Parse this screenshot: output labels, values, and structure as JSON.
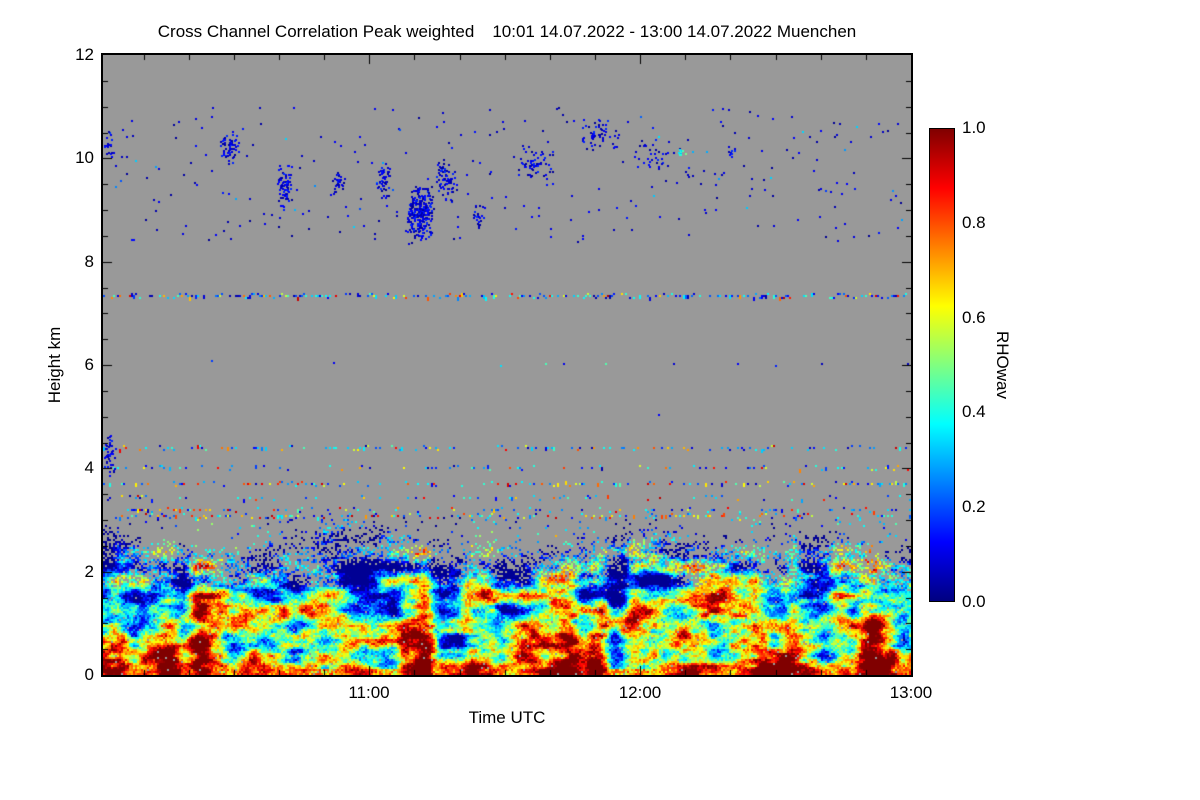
{
  "chart_data": {
    "type": "heatmap",
    "title": "Cross Channel Correlation Peak weighted",
    "date_range": "10:01 14.07.2022 - 13:00 14.07.2022 Muenchen",
    "xlabel": "Time UTC",
    "ylabel": "Height km",
    "x_start": "10:01",
    "x_end": "13:00",
    "x_ticks": [
      "11:00",
      "12:00",
      "13:00"
    ],
    "x_tick_minutes": [
      59,
      119,
      179
    ],
    "x_total_minutes": 179,
    "x_minor_step_minutes": 10,
    "y_min": 0,
    "y_max": 12,
    "y_ticks": [
      "0",
      "2",
      "4",
      "6",
      "8",
      "10",
      "12"
    ],
    "y_major_step": 2,
    "y_minor_step": 0.5,
    "colorbar": {
      "label": "RHOwav",
      "min": 0.0,
      "max": 1.0,
      "ticks": [
        "0.0",
        "0.2",
        "0.4",
        "0.6",
        "0.8",
        "1.0"
      ],
      "colormap": "jet"
    },
    "no_data_color": "#999999",
    "description": "Time-height cross-channel correlation (RHOwav). Dense jet-colored boundary-layer signal below ~2.8 km (red/orange near ground, cyan/green/blue plumes above), intermittent thin speckle layers near 3.0-4.5 km, a thin layer at ~7.35 km, and scattered dark-blue low-correlation cloud echoes between ~8.4 and 11 km. Background gray = no data.",
    "render": {
      "seed": 42,
      "boundary_layer": {
        "top_mean_km": 2.45,
        "top_amp_km": 0.5,
        "surface_value": 0.78,
        "lapse_per_km": 0.24
      },
      "speckle_lines": [
        {
          "h_km": 7.35,
          "density": 0.5,
          "warm_fraction": 0.18
        },
        {
          "h_km": 6.05,
          "density": 0.012,
          "warm_fraction": 0
        },
        {
          "h_km": 4.42,
          "density": 0.28,
          "warm_fraction": 0.22
        },
        {
          "h_km": 4.02,
          "density": 0.2,
          "warm_fraction": 0.25
        },
        {
          "h_km": 3.72,
          "density": 0.26,
          "warm_fraction": 0.3
        },
        {
          "h_km": 3.45,
          "density": 0.16,
          "warm_fraction": 0.3
        },
        {
          "h_km": 3.22,
          "density": 0.26,
          "warm_fraction": 0.35
        },
        {
          "h_km": 3.08,
          "density": 0.34,
          "warm_fraction": 0.4
        }
      ],
      "cloud_scatter": {
        "h_min_km": 8.4,
        "h_max_km": 11.0,
        "n": 300
      },
      "point_clusters": [
        {
          "t_min": 1,
          "h_km": 10.25,
          "dt_min": 1.5,
          "dh_km": 0.3,
          "n": 22
        },
        {
          "t_min": 28,
          "h_km": 10.2,
          "dt_min": 2.5,
          "dh_km": 0.35,
          "n": 60
        },
        {
          "t_min": 40,
          "h_km": 9.5,
          "dt_min": 1.8,
          "dh_km": 0.55,
          "n": 70
        },
        {
          "t_min": 52,
          "h_km": 9.5,
          "dt_min": 2,
          "dh_km": 0.3,
          "n": 30
        },
        {
          "t_min": 62,
          "h_km": 9.6,
          "dt_min": 1.5,
          "dh_km": 0.4,
          "n": 55
        },
        {
          "t_min": 70,
          "h_km": 8.95,
          "dt_min": 3.5,
          "dh_km": 0.6,
          "n": 280
        },
        {
          "t_min": 76,
          "h_km": 9.6,
          "dt_min": 2.5,
          "dh_km": 0.45,
          "n": 70
        },
        {
          "t_min": 83,
          "h_km": 8.9,
          "dt_min": 1.5,
          "dh_km": 0.3,
          "n": 20
        },
        {
          "t_min": 95,
          "h_km": 9.9,
          "dt_min": 6,
          "dh_km": 0.4,
          "n": 55
        },
        {
          "t_min": 110,
          "h_km": 10.45,
          "dt_min": 5,
          "dh_km": 0.35,
          "n": 55
        },
        {
          "t_min": 122,
          "h_km": 10.1,
          "dt_min": 5,
          "dh_km": 0.3,
          "n": 35
        },
        {
          "t_min": 128,
          "h_km": 10.15,
          "dt_min": 1.5,
          "dh_km": 0.08,
          "n": 9,
          "value_min": 0.3,
          "value_max": 0.5
        },
        {
          "t_min": 139,
          "h_km": 10.1,
          "dt_min": 1,
          "dh_km": 0.12,
          "n": 7
        },
        {
          "t_min": 1.2,
          "h_km": 4.25,
          "dt_min": 1.5,
          "dh_km": 0.45,
          "n": 45
        }
      ],
      "isolated_dots": [
        {
          "t_min": 24,
          "h_km": 6.1
        },
        {
          "t_min": 51,
          "h_km": 6.05
        },
        {
          "t_min": 88,
          "h_km": 6.0
        },
        {
          "t_min": 123,
          "h_km": 5.05
        }
      ]
    }
  }
}
